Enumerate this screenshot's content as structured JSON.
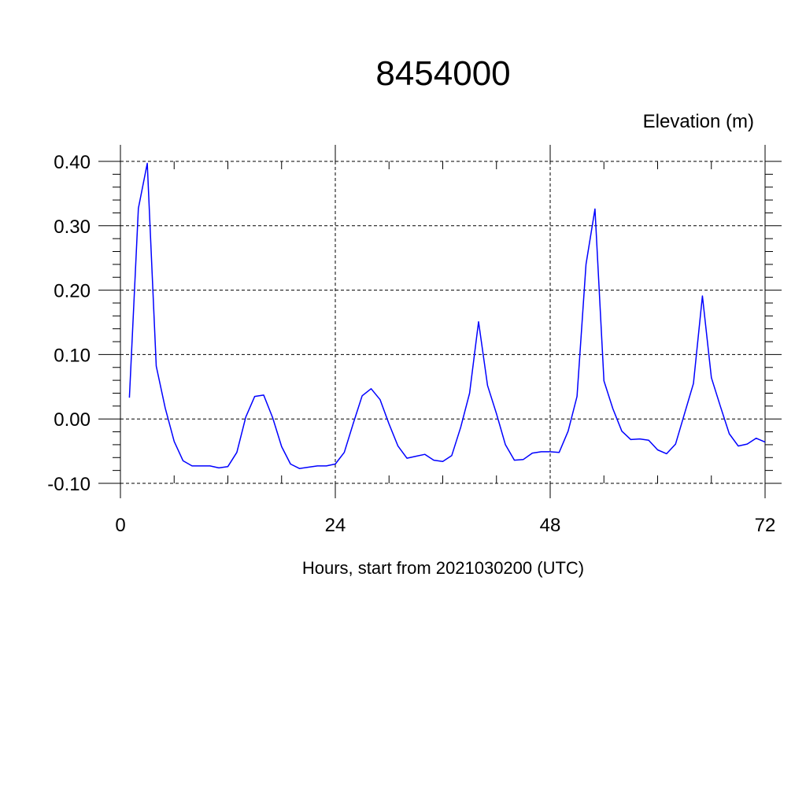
{
  "chart_data": {
    "type": "line",
    "title": "8454000",
    "ylabel": "Elevation (m)",
    "xlabel": "Hours, start from 2021030200 (UTC)",
    "xlim": [
      0,
      72
    ],
    "ylim": [
      -0.1,
      0.4
    ],
    "x_ticks": [
      0,
      24,
      48,
      72
    ],
    "x_tick_labels": [
      "0",
      "24",
      "48",
      "72"
    ],
    "y_ticks": [
      -0.1,
      0.0,
      0.1,
      0.2,
      0.3,
      0.4
    ],
    "y_tick_labels": [
      "-0.10",
      "0.00",
      "0.10",
      "0.20",
      "0.30",
      "0.40"
    ],
    "grid": true,
    "series_color": "#0000ff",
    "series": [
      {
        "x": [
          1,
          2,
          3,
          4,
          5,
          6,
          7,
          8,
          9,
          10,
          11,
          12,
          13,
          14,
          15,
          16,
          17,
          18,
          19,
          20,
          21,
          22,
          23,
          24,
          25,
          26,
          27,
          28,
          29,
          30,
          31,
          32,
          33,
          34,
          35,
          36,
          37,
          38,
          39,
          40,
          41,
          42,
          43,
          44,
          45,
          46,
          47,
          48,
          49,
          50,
          51,
          52,
          53,
          54,
          55,
          56,
          57,
          58,
          59,
          60,
          61,
          62,
          63,
          64,
          65,
          66,
          67,
          68,
          69,
          70,
          71,
          72
        ],
        "values": [
          0.033,
          0.327,
          0.397,
          0.082,
          0.017,
          -0.035,
          -0.065,
          -0.073,
          -0.073,
          -0.073,
          -0.076,
          -0.074,
          -0.052,
          0.003,
          0.035,
          0.037,
          0.002,
          -0.043,
          -0.07,
          -0.077,
          -0.075,
          -0.073,
          -0.073,
          -0.07,
          -0.052,
          -0.007,
          0.036,
          0.047,
          0.03,
          -0.008,
          -0.042,
          -0.061,
          -0.058,
          -0.055,
          -0.064,
          -0.066,
          -0.057,
          -0.013,
          0.04,
          0.151,
          0.052,
          0.008,
          -0.04,
          -0.064,
          -0.063,
          -0.053,
          -0.051,
          -0.051,
          -0.052,
          -0.019,
          0.035,
          0.24,
          0.326,
          0.059,
          0.016,
          -0.019,
          -0.032,
          -0.031,
          -0.033,
          -0.048,
          -0.054,
          -0.039,
          0.008,
          0.055,
          0.191,
          0.064,
          0.02,
          -0.023,
          -0.042,
          -0.039,
          -0.03,
          -0.036
        ]
      }
    ]
  }
}
